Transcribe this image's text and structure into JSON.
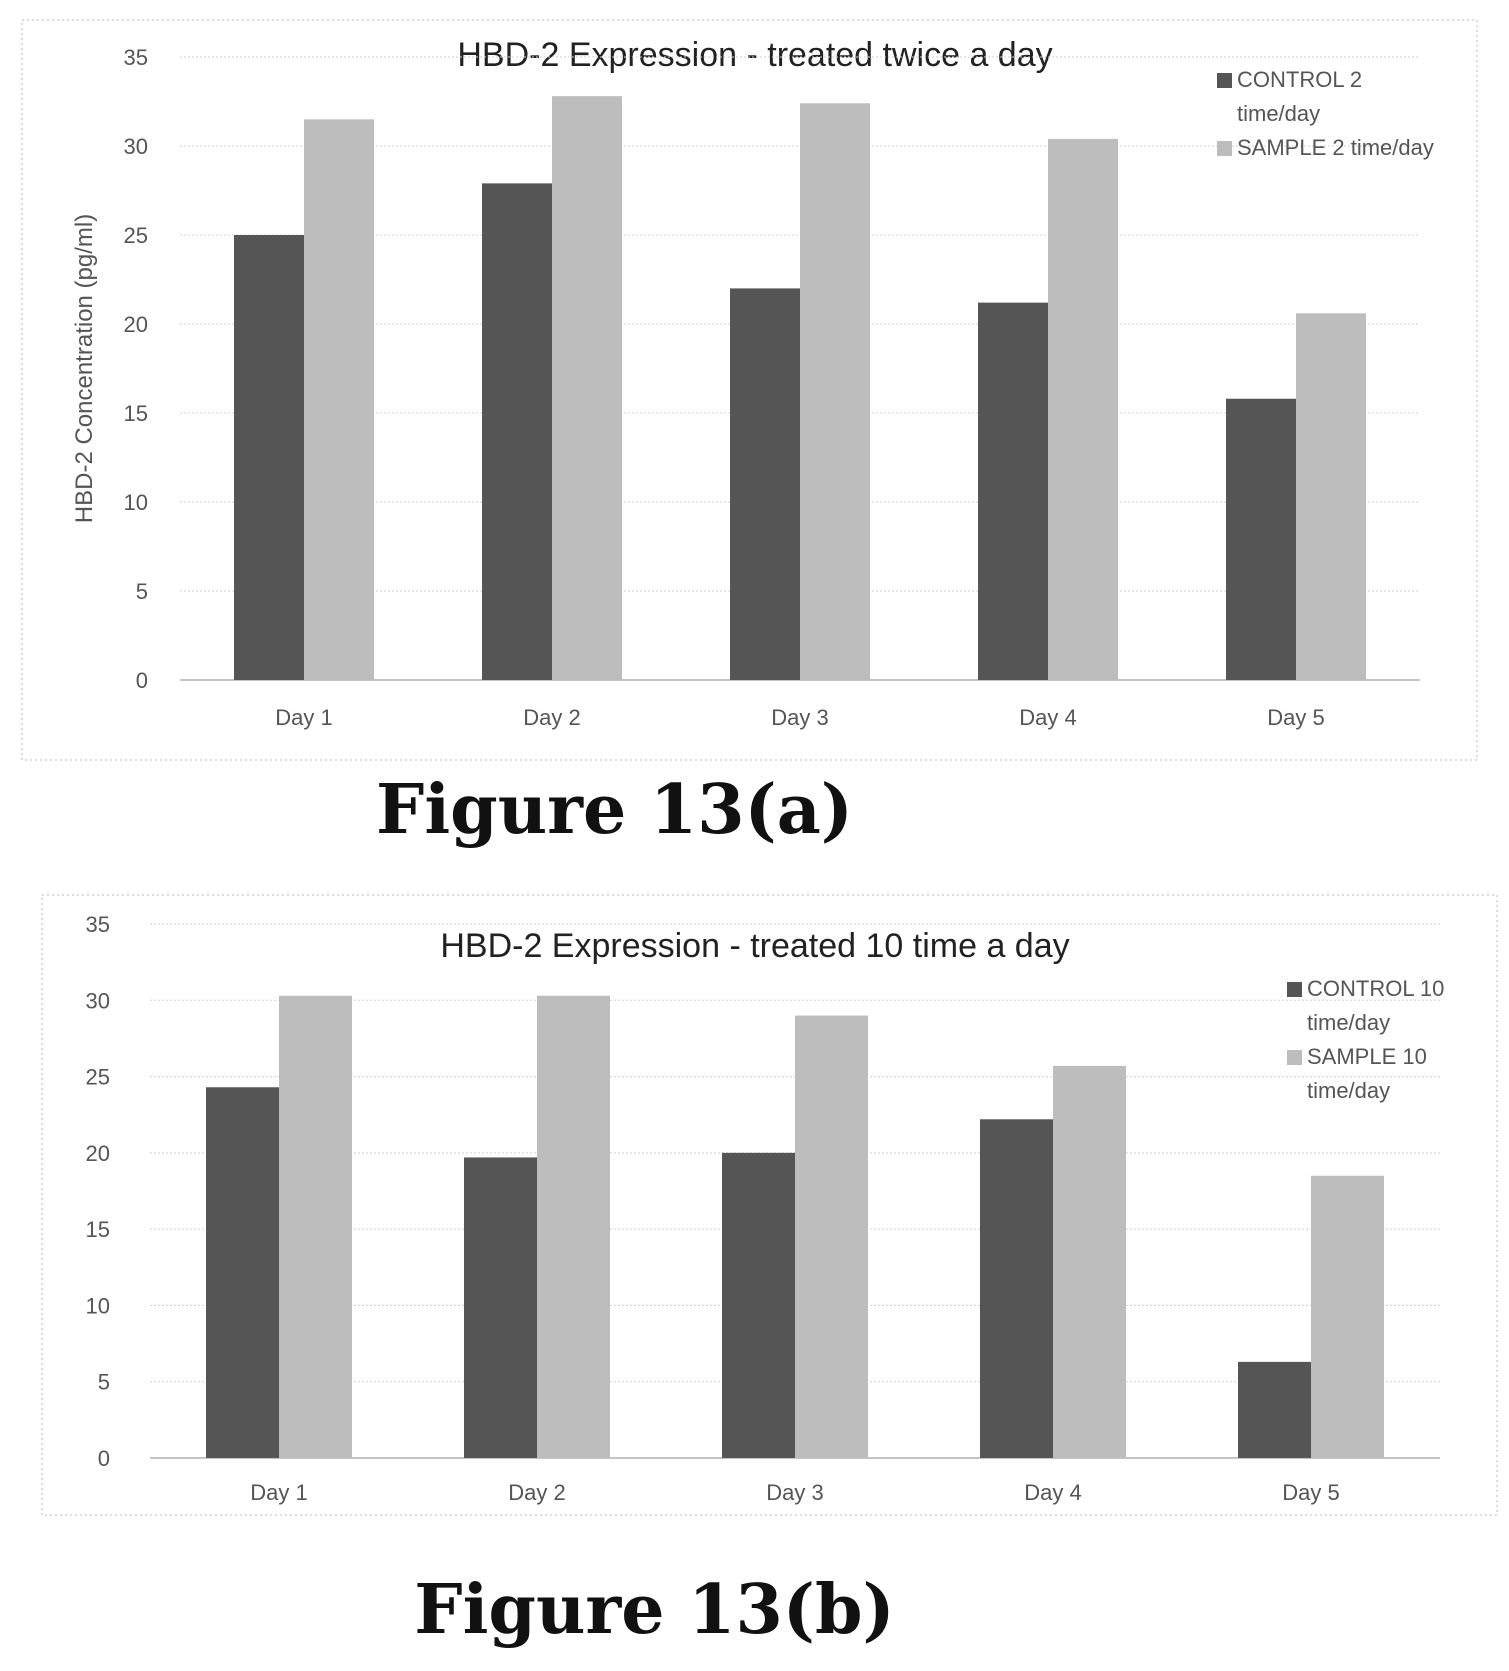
{
  "chart_data": [
    {
      "type": "bar",
      "title": "HBD-2 Expression - treated twice a day",
      "xlabel": "",
      "ylabel": "HBD-2 Concentration (pg/ml)",
      "ylim": [
        0,
        35
      ],
      "yticks": [
        0,
        5,
        10,
        15,
        20,
        25,
        30,
        35
      ],
      "categories": [
        "Day 1",
        "Day 2",
        "Day 3",
        "Day 4",
        "Day 5"
      ],
      "series": [
        {
          "name": "CONTROL 2 time/day",
          "legend_lines": [
            "CONTROL 2",
            "time/day"
          ],
          "color": "#555555",
          "values": [
            25.0,
            27.9,
            22.0,
            21.2,
            15.8
          ]
        },
        {
          "name": "SAMPLE 2 time/day",
          "legend_lines": [
            "SAMPLE 2 time/day"
          ],
          "color": "#bdbdbd",
          "values": [
            31.5,
            32.8,
            32.4,
            30.4,
            20.6
          ]
        }
      ],
      "legend_position": "top-right",
      "grid": true
    },
    {
      "type": "bar",
      "title": "HBD-2 Expression - treated 10 time a day",
      "xlabel": "",
      "ylabel": "",
      "ylim": [
        0,
        35
      ],
      "yticks": [
        0,
        5,
        10,
        15,
        20,
        25,
        30,
        35
      ],
      "categories": [
        "Day 1",
        "Day 2",
        "Day 3",
        "Day 4",
        "Day 5"
      ],
      "series": [
        {
          "name": "CONTROL 10 time/day",
          "legend_lines": [
            "CONTROL 10",
            "time/day"
          ],
          "color": "#555555",
          "values": [
            24.3,
            19.7,
            20.0,
            22.2,
            6.3
          ]
        },
        {
          "name": "SAMPLE 10 time/day",
          "legend_lines": [
            "SAMPLE 10",
            "time/day"
          ],
          "color": "#bdbdbd",
          "values": [
            30.3,
            30.3,
            29.0,
            25.7,
            18.5
          ]
        }
      ],
      "legend_position": "top-right",
      "grid": true
    }
  ],
  "captions": [
    "Figure 13(a)",
    "Figure 13(b)"
  ]
}
